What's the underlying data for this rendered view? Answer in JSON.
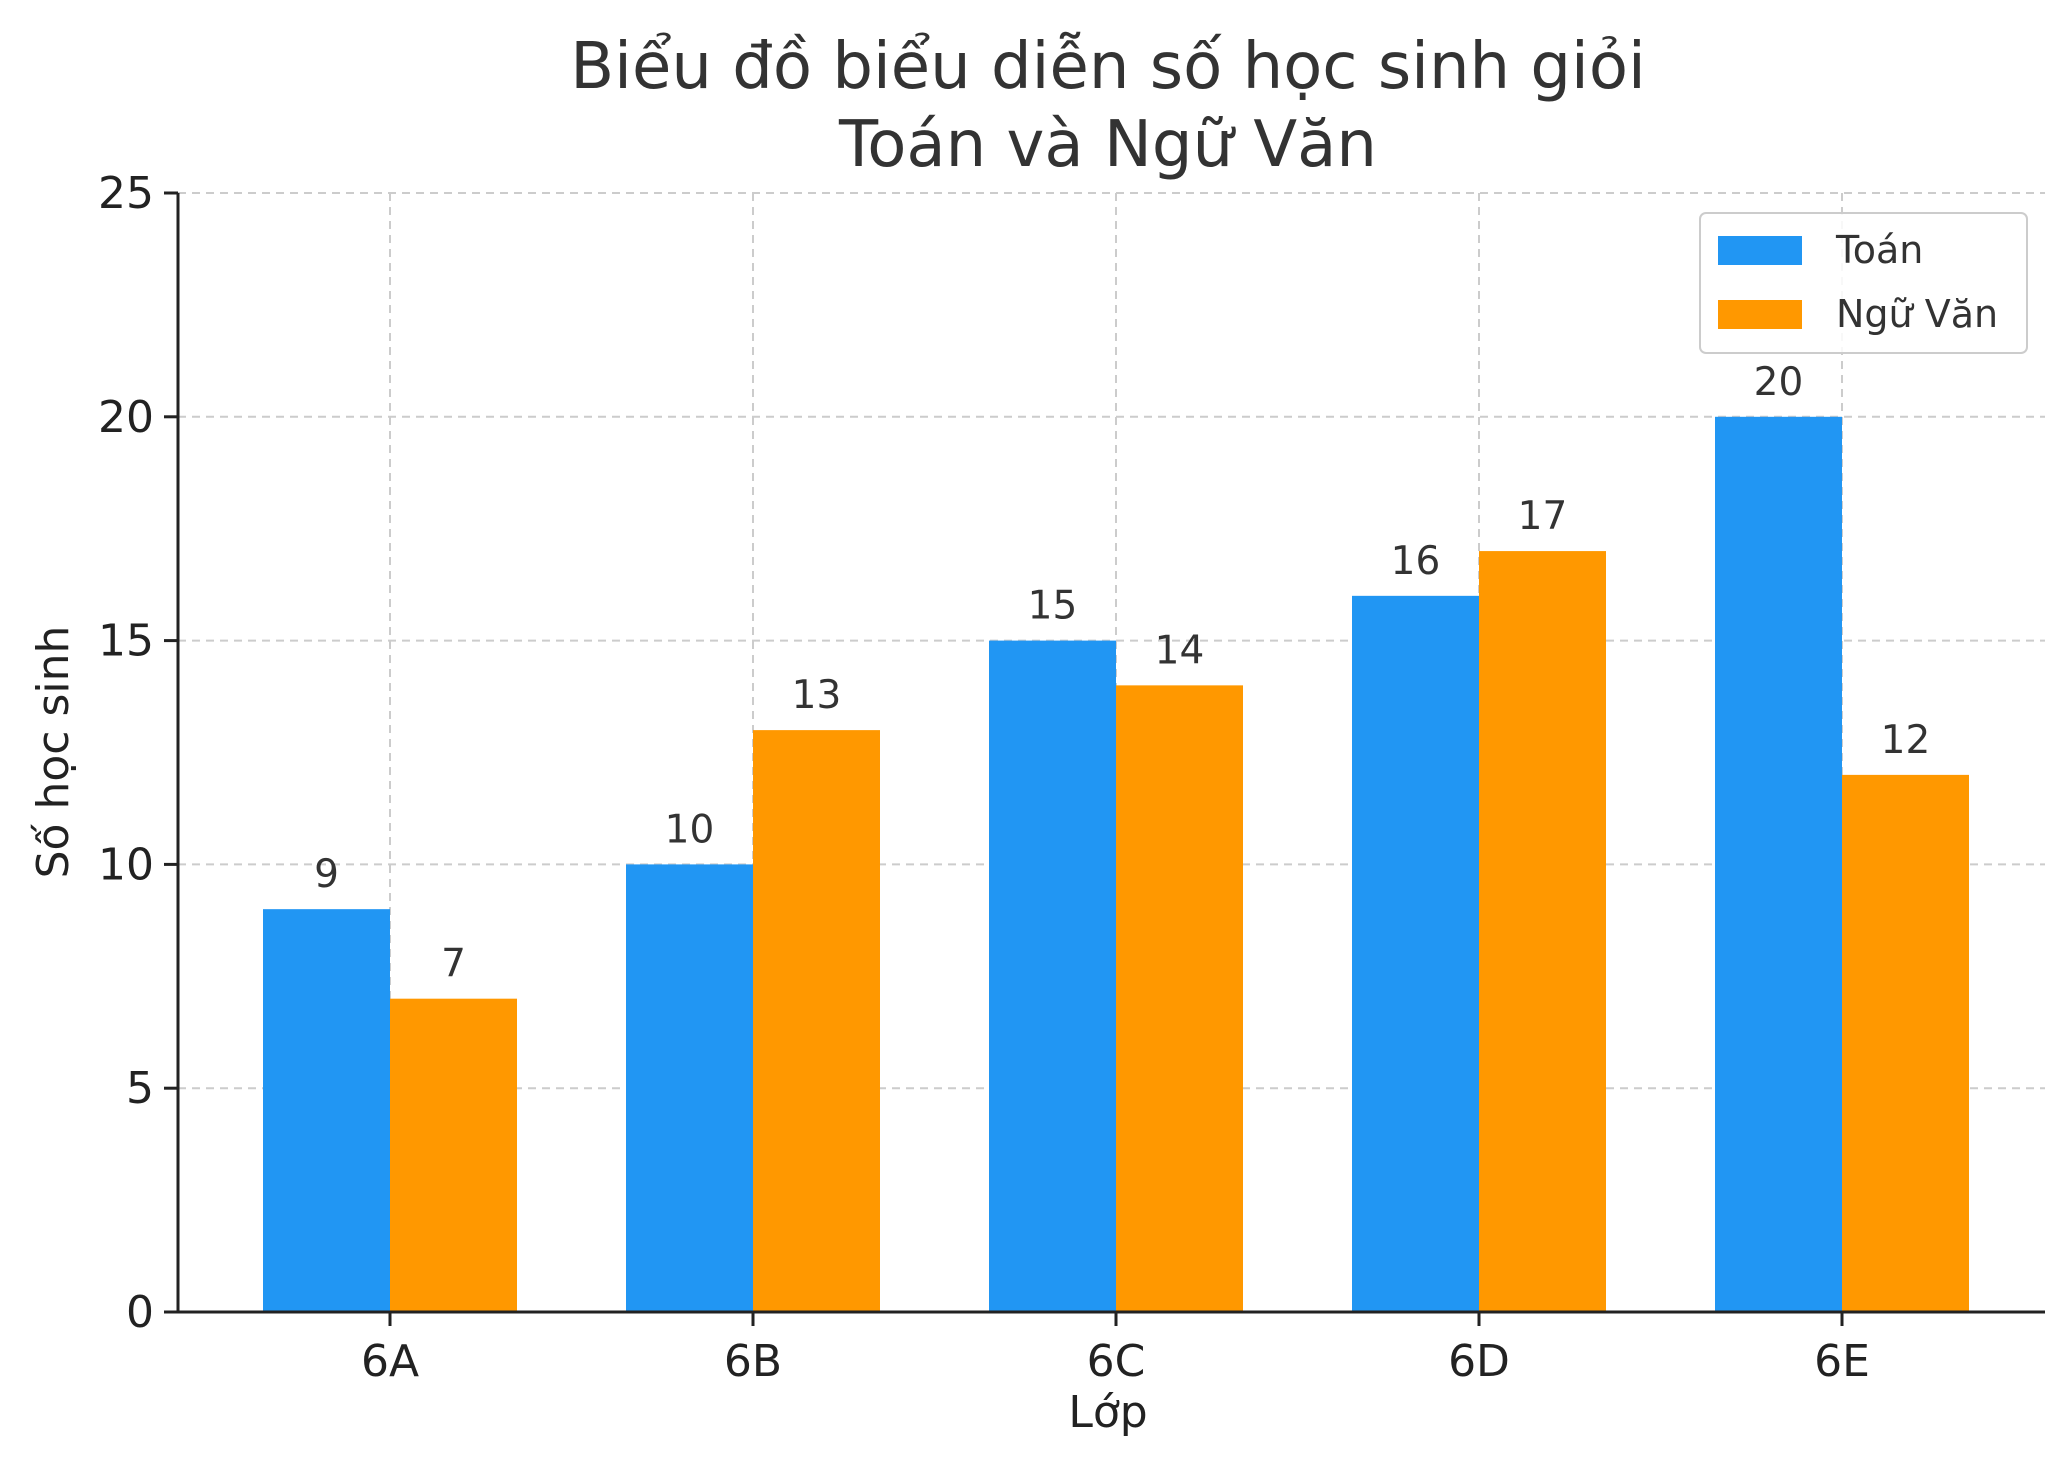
{
  "chart_data": {
    "type": "bar",
    "title_lines": [
      "Biểu đồ biểu diễn số học sinh giỏi",
      "Toán và Ngữ Văn"
    ],
    "xlabel": "Lớp",
    "ylabel": "Số học sinh",
    "categories": [
      "6A",
      "6B",
      "6C",
      "6D",
      "6E"
    ],
    "series": [
      {
        "name": "Toán",
        "color": "#2196F3",
        "values": [
          9,
          10,
          15,
          16,
          20
        ]
      },
      {
        "name": "Ngữ Văn",
        "color": "#FF9800",
        "values": [
          7,
          13,
          14,
          17,
          12
        ]
      }
    ],
    "ylim": [
      0,
      25
    ],
    "yticks": [
      0,
      5,
      10,
      15,
      20,
      25
    ],
    "grid": true,
    "legend_position": "top-right",
    "data_labels": true
  }
}
